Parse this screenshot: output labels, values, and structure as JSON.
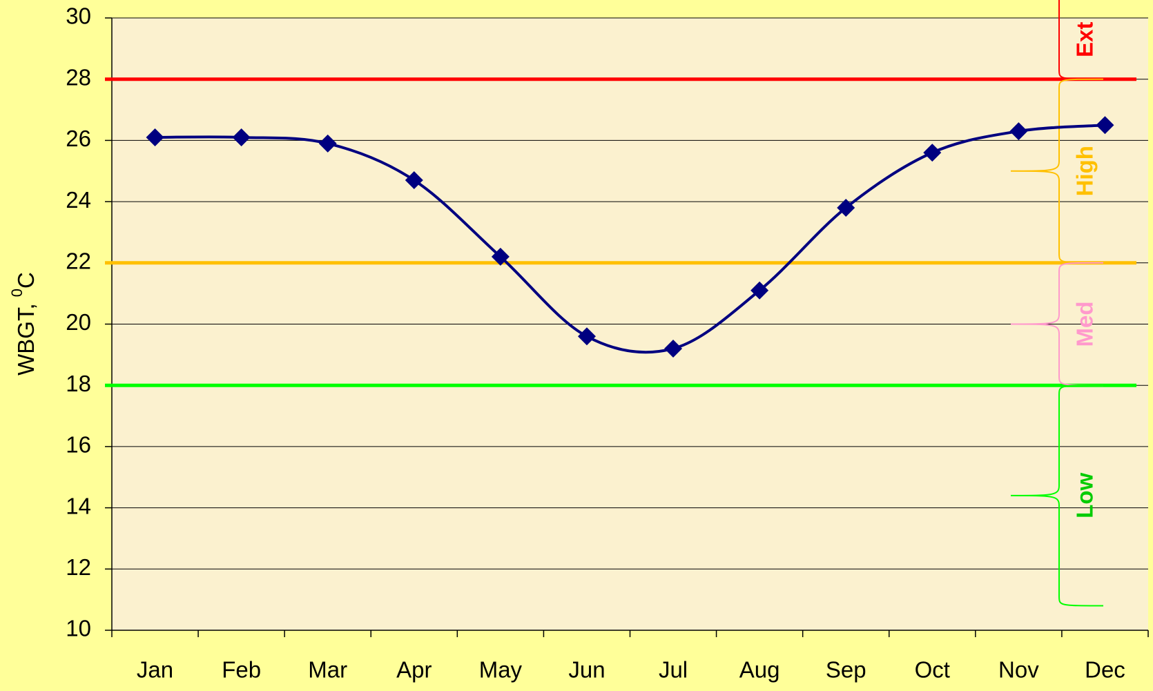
{
  "chart_data": {
    "type": "line",
    "y_label": {
      "text": "WBGT, ",
      "sup": "0",
      "unit": "C"
    },
    "categories": [
      "Jan",
      "Feb",
      "Mar",
      "Apr",
      "May",
      "Jun",
      "Jul",
      "Aug",
      "Sep",
      "Oct",
      "Nov",
      "Dec"
    ],
    "series": [
      {
        "color": "#000080",
        "values": [
          26.1,
          26.1,
          25.9,
          24.7,
          22.2,
          19.6,
          19.2,
          21.1,
          23.8,
          25.6,
          26.3,
          26.5
        ]
      }
    ],
    "ylim": [
      10,
      30
    ],
    "yticks": [
      10,
      12,
      14,
      16,
      18,
      20,
      22,
      24,
      26,
      28,
      30
    ],
    "grid": true,
    "thresholds": [
      {
        "value": 28,
        "color": "#ff0000"
      },
      {
        "value": 22,
        "color": "#ffc000"
      },
      {
        "value": 18,
        "color": "#00ff00"
      }
    ],
    "bands": [
      {
        "label": "Ext",
        "from": 28,
        "to": 34,
        "color": "#ff0000",
        "label_color": "#ff0000"
      },
      {
        "label": "High",
        "from": 22,
        "to": 28,
        "color": "#ffc000",
        "label_color": "#ffc000"
      },
      {
        "label": "Med",
        "from": 18,
        "to": 22,
        "color": "#ff99cc",
        "label_color": "#ff99cc"
      },
      {
        "label": "Low",
        "from": 10.8,
        "to": 18,
        "color": "#00ff00",
        "label_color": "#00cc00"
      }
    ]
  }
}
